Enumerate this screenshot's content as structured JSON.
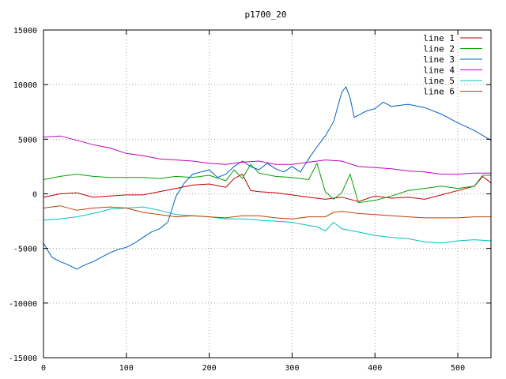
{
  "chart_data": {
    "type": "line",
    "title": "p1700_20",
    "xlabel": "",
    "ylabel": "",
    "xlim": [
      0,
      540
    ],
    "ylim": [
      -15000,
      15000
    ],
    "xticks": [
      0,
      100,
      200,
      300,
      400,
      500
    ],
    "yticks": [
      -15000,
      -10000,
      -5000,
      0,
      5000,
      10000,
      15000
    ],
    "grid": true,
    "legend_position": "top-right",
    "series": [
      {
        "name": "line 1",
        "color": "#c00000",
        "x": [
          0,
          20,
          40,
          60,
          80,
          100,
          120,
          140,
          160,
          180,
          200,
          220,
          230,
          240,
          250,
          260,
          280,
          300,
          320,
          340,
          350,
          360,
          380,
          400,
          420,
          440,
          460,
          480,
          500,
          520,
          530,
          540
        ],
        "y": [
          -300,
          0,
          100,
          -300,
          -200,
          -100,
          -100,
          200,
          500,
          800,
          900,
          600,
          1400,
          1800,
          300,
          200,
          100,
          -100,
          -300,
          -500,
          -400,
          -300,
          -700,
          -200,
          -400,
          -300,
          -500,
          -100,
          300,
          700,
          1600,
          1000
        ]
      },
      {
        "name": "line 2",
        "color": "#00a000",
        "x": [
          0,
          20,
          40,
          60,
          80,
          100,
          120,
          140,
          160,
          180,
          200,
          220,
          230,
          240,
          250,
          260,
          280,
          300,
          320,
          330,
          340,
          350,
          360,
          370,
          380,
          400,
          420,
          440,
          460,
          480,
          500,
          520,
          530,
          540
        ],
        "y": [
          1300,
          1600,
          1800,
          1600,
          1500,
          1500,
          1500,
          1400,
          1600,
          1500,
          1700,
          1200,
          2200,
          1400,
          2700,
          1900,
          1600,
          1500,
          1300,
          2800,
          200,
          -500,
          100,
          1800,
          -800,
          -600,
          -200,
          300,
          500,
          700,
          500,
          700,
          1700,
          1700
        ]
      },
      {
        "name": "line 3",
        "color": "#0060c0",
        "x": [
          0,
          10,
          20,
          30,
          40,
          50,
          60,
          70,
          80,
          90,
          100,
          110,
          120,
          130,
          140,
          150,
          160,
          170,
          180,
          190,
          200,
          210,
          220,
          230,
          240,
          250,
          260,
          270,
          280,
          290,
          300,
          310,
          320,
          330,
          340,
          350,
          360,
          365,
          370,
          375,
          380,
          390,
          400,
          410,
          420,
          440,
          460,
          480,
          500,
          520,
          540
        ],
        "y": [
          -4500,
          -5800,
          -6200,
          -6500,
          -6900,
          -6500,
          -6200,
          -5800,
          -5400,
          -5100,
          -4900,
          -4500,
          -4000,
          -3500,
          -3200,
          -2600,
          -200,
          1000,
          1800,
          2000,
          2200,
          1500,
          1800,
          2500,
          3000,
          2500,
          2200,
          2800,
          2300,
          2000,
          2500,
          2000,
          3200,
          4300,
          5300,
          6600,
          9300,
          9800,
          8800,
          7000,
          7200,
          7600,
          7800,
          8400,
          8000,
          8200,
          7900,
          7300,
          6500,
          5800,
          4900
        ]
      },
      {
        "name": "line 4",
        "color": "#c000c0",
        "x": [
          0,
          20,
          40,
          60,
          80,
          100,
          120,
          140,
          160,
          180,
          200,
          220,
          240,
          260,
          280,
          300,
          320,
          340,
          360,
          380,
          400,
          420,
          440,
          460,
          480,
          500,
          520,
          540
        ],
        "y": [
          5200,
          5300,
          4900,
          4500,
          4200,
          3700,
          3500,
          3200,
          3100,
          3000,
          2800,
          2700,
          2900,
          3000,
          2700,
          2700,
          2900,
          3100,
          3000,
          2500,
          2400,
          2300,
          2100,
          2000,
          1800,
          1800,
          1900,
          1900
        ]
      },
      {
        "name": "line 5",
        "color": "#00c0c0",
        "x": [
          0,
          20,
          40,
          60,
          80,
          100,
          120,
          140,
          160,
          180,
          200,
          220,
          240,
          260,
          280,
          300,
          320,
          330,
          340,
          350,
          360,
          380,
          400,
          420,
          440,
          460,
          480,
          500,
          520,
          540
        ],
        "y": [
          -2400,
          -2300,
          -2100,
          -1800,
          -1400,
          -1300,
          -1200,
          -1500,
          -1900,
          -2000,
          -2100,
          -2300,
          -2300,
          -2400,
          -2500,
          -2600,
          -2900,
          -3000,
          -3400,
          -2600,
          -3200,
          -3500,
          -3800,
          -4000,
          -4100,
          -4400,
          -4500,
          -4300,
          -4200,
          -4300
        ]
      },
      {
        "name": "line 6",
        "color": "#c04000",
        "x": [
          0,
          20,
          40,
          60,
          80,
          100,
          120,
          140,
          160,
          180,
          200,
          220,
          240,
          260,
          280,
          300,
          320,
          340,
          350,
          360,
          380,
          400,
          420,
          440,
          460,
          480,
          500,
          520,
          540
        ],
        "y": [
          -1300,
          -1100,
          -1500,
          -1300,
          -1200,
          -1300,
          -1700,
          -1900,
          -2100,
          -2000,
          -2100,
          -2200,
          -2000,
          -2000,
          -2200,
          -2300,
          -2100,
          -2100,
          -1700,
          -1600,
          -1800,
          -1900,
          -2000,
          -2100,
          -2200,
          -2200,
          -2200,
          -2100,
          -2100
        ]
      }
    ]
  }
}
